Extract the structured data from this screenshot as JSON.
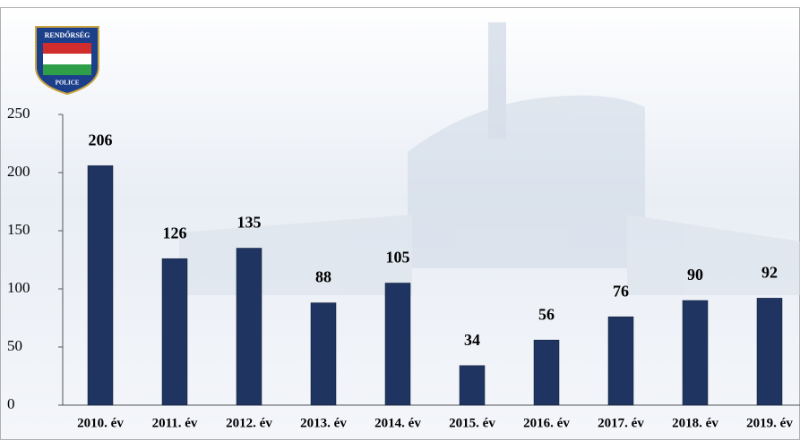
{
  "logo": {
    "top": "RENDŐRSÉG",
    "bottom": "POLICE"
  },
  "chart_data": {
    "type": "bar",
    "categories": [
      "2010. év",
      "2011. év",
      "2012. év",
      "2013. év",
      "2014. év",
      "2015. év",
      "2016. év",
      "2017. év",
      "2018. év",
      "2019. év"
    ],
    "values": [
      206,
      126,
      135,
      88,
      105,
      34,
      56,
      76,
      90,
      92
    ],
    "color": "#1f3460",
    "ylim": [
      0,
      250
    ],
    "yticks": [
      0,
      50,
      100,
      150,
      200,
      250
    ],
    "grid": false
  }
}
